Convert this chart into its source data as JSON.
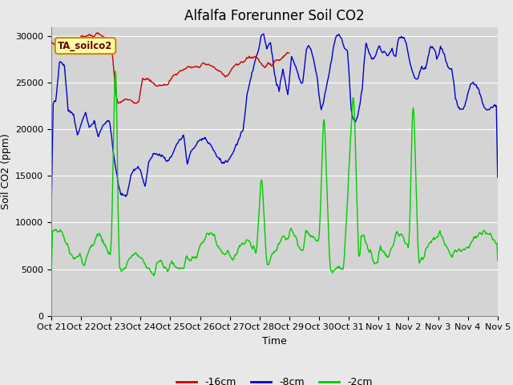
{
  "title": "Alfalfa Forerunner Soil CO2",
  "xlabel": "Time",
  "ylabel": "Soil CO2 (ppm)",
  "ylim": [
    0,
    31000
  ],
  "yticks": [
    0,
    5000,
    10000,
    15000,
    20000,
    25000,
    30000
  ],
  "xtick_labels": [
    "Oct 21",
    "Oct 22",
    "Oct 23",
    "Oct 24",
    "Oct 25",
    "Oct 26",
    "Oct 27",
    "Oct 28",
    "Oct 29",
    "Oct 30",
    "Oct 31",
    "Nov 1",
    "Nov 2",
    "Nov 3",
    "Nov 4",
    "Nov 5"
  ],
  "line_colors": {
    "d16": "#cc0000",
    "d8": "#0000cc",
    "d2": "#00cc00"
  },
  "legend_labels": [
    "-16cm",
    "-8cm",
    "-2cm"
  ],
  "annotation_text": "TA_soilco2",
  "background_color": "#e8e8e8",
  "plot_bg_color": "#d4d4d4",
  "grid_color": "#ffffff",
  "title_fontsize": 12,
  "label_fontsize": 9,
  "tick_fontsize": 8
}
